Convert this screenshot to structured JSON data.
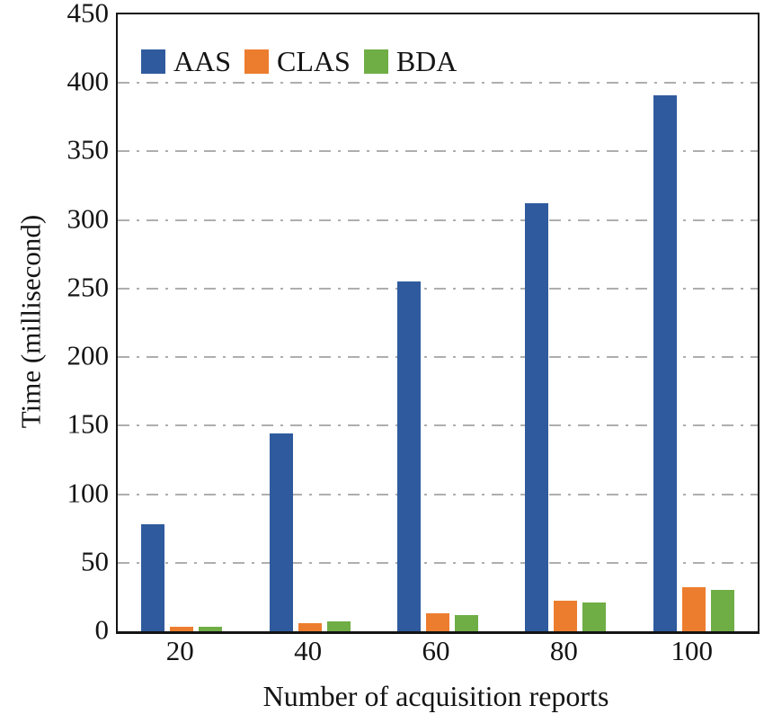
{
  "chart_data": {
    "type": "bar",
    "title": "",
    "xlabel": "Number of acquisition reports",
    "ylabel": "Time (millisecond)",
    "categories": [
      "20",
      "40",
      "60",
      "80",
      "100"
    ],
    "series": [
      {
        "name": "AAS",
        "color": "#2f5b9e",
        "values": [
          78,
          144,
          255,
          312,
          391
        ]
      },
      {
        "name": "CLAS",
        "color": "#ed7d2e",
        "values": [
          3,
          6,
          13,
          22,
          32
        ]
      },
      {
        "name": "BDA",
        "color": "#6fad45",
        "values": [
          3,
          7,
          12,
          21,
          30
        ]
      }
    ],
    "ylim": [
      0,
      450
    ],
    "ytick_step": 50,
    "yticks": [
      0,
      50,
      100,
      150,
      200,
      250,
      300,
      350,
      400,
      450
    ],
    "grid": "horizontal dash-dot gray lines at each 50 except 0 and 450",
    "legend_position": "top-left inside plot area",
    "bar_order_note": "series drawn left-to-right per category: AAS, CLAS, BDA"
  },
  "colors": {
    "axis_frame": "#141414",
    "gridline": "#aeaeae",
    "text": "#141414",
    "background": "#ffffff"
  }
}
